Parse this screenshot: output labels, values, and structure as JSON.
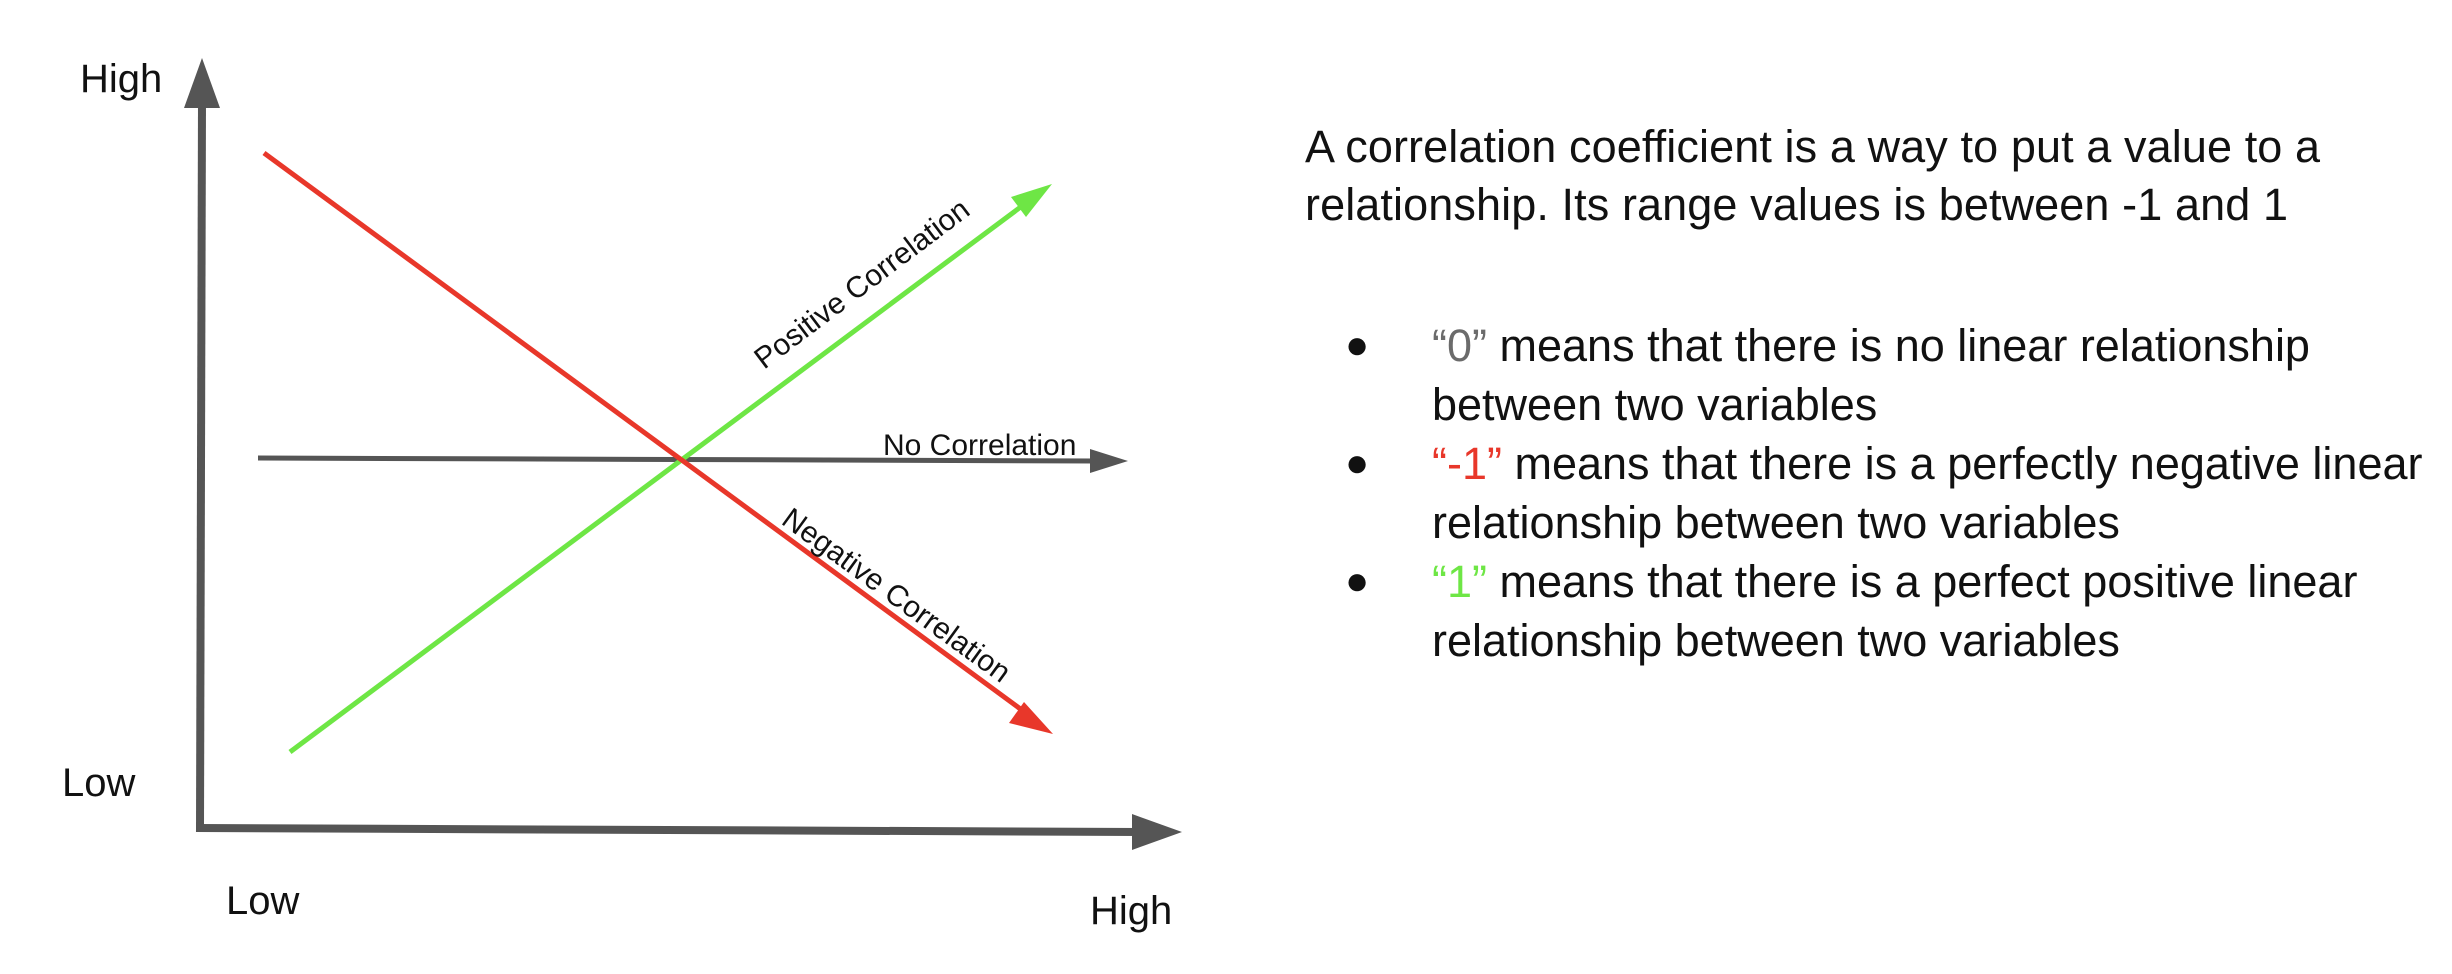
{
  "axes": {
    "y_high_label": "High",
    "y_low_label": "Low",
    "x_low_label": "Low",
    "x_high_label": "High"
  },
  "lines": {
    "positive": {
      "label": "Positive Correlation",
      "color": "#6ee645"
    },
    "none": {
      "label": "No Correlation",
      "color": "#555555"
    },
    "negative": {
      "label": "Negative Correlation",
      "color": "#e8372a"
    }
  },
  "explanation": {
    "intro": "A correlation coefficient is a way to put a value to a relationship. Its range values is between -1 and 1",
    "bullets": [
      {
        "value": "“0”",
        "text": " means that there is no linear relationship between two variables",
        "value_color": "#6b6b6b"
      },
      {
        "value": "“-1”",
        "text": " means that there is a perfectly negative linear relationship between two variables",
        "value_color": "#e8372a"
      },
      {
        "value": "“1”",
        "text": " means that there is a perfect positive linear relationship between two variables",
        "value_color": "#6ee645"
      }
    ],
    "bullet_glyph": "●"
  }
}
